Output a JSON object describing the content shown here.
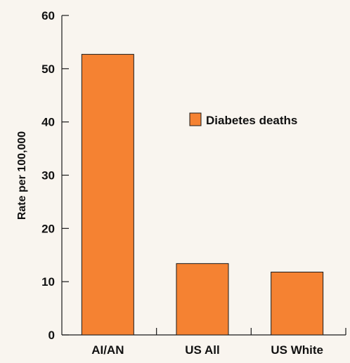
{
  "chart_data": {
    "type": "bar",
    "categories": [
      "AI/AN",
      "US All",
      "US White"
    ],
    "series": [
      {
        "name": "Diabetes deaths",
        "values": [
          52.7,
          13.4,
          11.8
        ]
      }
    ],
    "title": "",
    "xlabel": "",
    "ylabel": "Rate per 100,000",
    "ylim": [
      0,
      60
    ],
    "yticks": [
      0,
      10,
      20,
      30,
      40,
      50,
      60
    ],
    "grid": false,
    "legend_position": "right-middle",
    "colors": {
      "bar": "#f58232",
      "bar_stroke": "#1a1a1a",
      "axis": "#1a1a1a",
      "background": "#f9f5ef"
    }
  }
}
